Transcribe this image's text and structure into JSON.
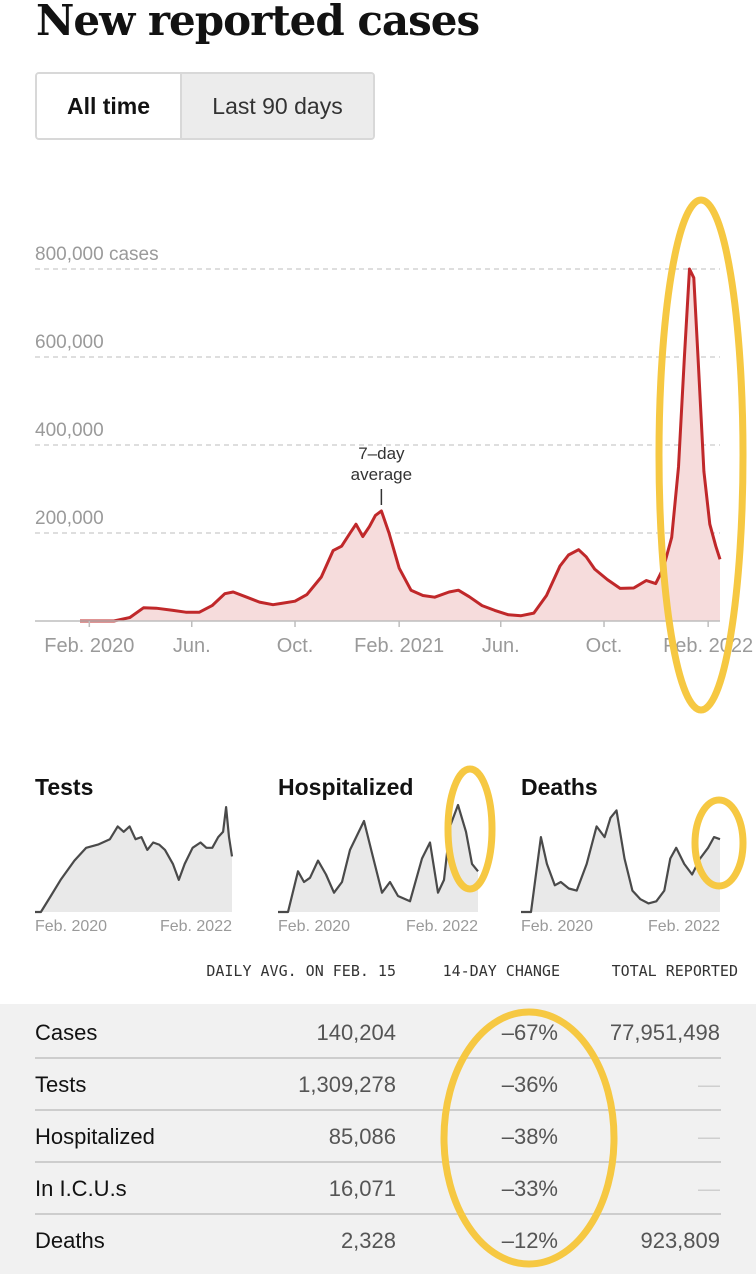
{
  "title": "New reported cases",
  "toggle": {
    "all_time": "All time",
    "last_90": "Last 90 days",
    "selected": "All time"
  },
  "colors": {
    "main_line": "#c0282a",
    "main_fill": "#f6dcdc",
    "small_line": "#4a4a4a",
    "small_fill": "#e9e9e9",
    "highlight": "#f6c842",
    "grid": "#d4d4d4"
  },
  "chart_data": [
    {
      "type": "area",
      "title": "New reported cases",
      "y_ticks": [
        {
          "value": 200000,
          "label": "200,000"
        },
        {
          "value": 400000,
          "label": "400,000"
        },
        {
          "value": 600000,
          "label": "600,000"
        },
        {
          "value": 800000,
          "label": "800,000 cases"
        }
      ],
      "ylim": [
        0,
        800000
      ],
      "x_ticks": [
        "Feb. 2020",
        "Jun.",
        "Oct.",
        "Feb. 2021",
        "Jun.",
        "Oct.",
        "Feb. 2022"
      ],
      "x_tick_dates": [
        "2020-02-01",
        "2020-06-01",
        "2020-10-01",
        "2021-02-01",
        "2021-06-01",
        "2021-10-01",
        "2022-02-01"
      ],
      "annotation": {
        "line1": "7–day",
        "line2": "average",
        "date": "2021-01-11",
        "value": 250000
      },
      "series": [
        {
          "x": [
            "2020-01-21",
            "2020-03-01",
            "2020-03-20",
            "2020-04-05",
            "2020-04-20",
            "2020-05-10",
            "2020-05-25",
            "2020-06-10",
            "2020-06-25",
            "2020-07-10",
            "2020-07-20",
            "2020-08-05",
            "2020-08-20",
            "2020-09-05",
            "2020-09-15",
            "2020-10-01",
            "2020-10-15",
            "2020-11-01",
            "2020-11-15",
            "2020-11-25",
            "2020-12-05",
            "2020-12-12",
            "2020-12-20",
            "2020-12-28",
            "2021-01-04",
            "2021-01-11",
            "2021-01-20",
            "2021-02-01",
            "2021-02-15",
            "2021-03-01",
            "2021-03-15",
            "2021-04-01",
            "2021-04-12",
            "2021-04-25",
            "2021-05-10",
            "2021-05-25",
            "2021-06-10",
            "2021-06-25",
            "2021-07-10",
            "2021-07-25",
            "2021-08-10",
            "2021-08-20",
            "2021-09-01",
            "2021-09-10",
            "2021-09-20",
            "2021-10-05",
            "2021-10-20",
            "2021-11-05",
            "2021-11-20",
            "2021-12-01",
            "2021-12-10",
            "2021-12-20",
            "2021-12-28",
            "2022-01-04",
            "2022-01-10",
            "2022-01-15",
            "2022-01-20",
            "2022-01-27",
            "2022-02-03",
            "2022-02-10",
            "2022-02-15"
          ],
          "values": [
            0,
            0,
            8000,
            30000,
            29000,
            24000,
            20000,
            20000,
            35000,
            62000,
            66000,
            54000,
            43000,
            37000,
            40000,
            45000,
            60000,
            100000,
            160000,
            170000,
            200000,
            220000,
            192000,
            215000,
            240000,
            250000,
            200000,
            120000,
            70000,
            58000,
            54000,
            66000,
            70000,
            55000,
            35000,
            24000,
            14000,
            12000,
            18000,
            58000,
            125000,
            150000,
            162000,
            146000,
            118000,
            94000,
            74000,
            75000,
            92000,
            85000,
            120000,
            190000,
            350000,
            600000,
            800000,
            780000,
            600000,
            340000,
            220000,
            170000,
            140204
          ]
        }
      ]
    },
    {
      "type": "area",
      "title": "Tests",
      "x_ticks": [
        "Feb. 2020",
        "Feb. 2022"
      ],
      "series": [
        {
          "x": [
            0,
            0.03,
            0.08,
            0.13,
            0.2,
            0.26,
            0.32,
            0.38,
            0.42,
            0.45,
            0.48,
            0.51,
            0.54,
            0.57,
            0.6,
            0.63,
            0.66,
            0.7,
            0.73,
            0.76,
            0.8,
            0.84,
            0.87,
            0.9,
            0.93,
            0.955,
            0.97,
            0.985,
            1
          ],
          "values": [
            0,
            0,
            0.15,
            0.3,
            0.48,
            0.6,
            0.63,
            0.68,
            0.8,
            0.75,
            0.8,
            0.68,
            0.7,
            0.58,
            0.65,
            0.63,
            0.58,
            0.45,
            0.3,
            0.45,
            0.6,
            0.65,
            0.6,
            0.6,
            0.7,
            0.75,
            0.98,
            0.7,
            0.52
          ]
        }
      ]
    },
    {
      "type": "area",
      "title": "Hospitalized",
      "x_ticks": [
        "Feb. 2020",
        "Feb. 2022"
      ],
      "series": [
        {
          "x": [
            0,
            0.05,
            0.1,
            0.13,
            0.16,
            0.2,
            0.24,
            0.28,
            0.32,
            0.36,
            0.43,
            0.47,
            0.52,
            0.56,
            0.6,
            0.66,
            0.72,
            0.76,
            0.8,
            0.83,
            0.86,
            0.9,
            0.94,
            0.97,
            1
          ],
          "values": [
            0,
            0,
            0.38,
            0.28,
            0.32,
            0.48,
            0.35,
            0.18,
            0.28,
            0.58,
            0.85,
            0.55,
            0.18,
            0.28,
            0.15,
            0.1,
            0.5,
            0.65,
            0.18,
            0.3,
            0.8,
            1.0,
            0.75,
            0.45,
            0.38
          ]
        }
      ]
    },
    {
      "type": "area",
      "title": "Deaths",
      "x_ticks": [
        "Feb. 2020",
        "Feb. 2022"
      ],
      "series": [
        {
          "x": [
            0,
            0.05,
            0.1,
            0.13,
            0.17,
            0.2,
            0.24,
            0.28,
            0.33,
            0.38,
            0.42,
            0.45,
            0.48,
            0.52,
            0.56,
            0.6,
            0.64,
            0.68,
            0.72,
            0.75,
            0.78,
            0.82,
            0.86,
            0.9,
            0.94,
            0.97,
            1
          ],
          "values": [
            0,
            0,
            0.7,
            0.45,
            0.25,
            0.28,
            0.22,
            0.2,
            0.45,
            0.8,
            0.7,
            0.88,
            0.95,
            0.5,
            0.2,
            0.12,
            0.08,
            0.1,
            0.2,
            0.5,
            0.6,
            0.45,
            0.35,
            0.5,
            0.6,
            0.7,
            0.68
          ]
        }
      ]
    }
  ],
  "table": {
    "headers": {
      "avg": "DAILY AVG. ON FEB. 15",
      "change": "14-DAY CHANGE",
      "total": "TOTAL REPORTED"
    },
    "rows": [
      {
        "label": "Cases",
        "avg": "140,204",
        "change": "–67%",
        "total": "77,951,498"
      },
      {
        "label": "Tests",
        "avg": "1,309,278",
        "change": "–36%",
        "total": "—"
      },
      {
        "label": "Hospitalized",
        "avg": "85,086",
        "change": "–38%",
        "total": "—"
      },
      {
        "label": "In I.C.U.s",
        "avg": "16,071",
        "change": "–33%",
        "total": "—"
      },
      {
        "label": "Deaths",
        "avg": "2,328",
        "change": "–12%",
        "total": "923,809"
      }
    ]
  }
}
